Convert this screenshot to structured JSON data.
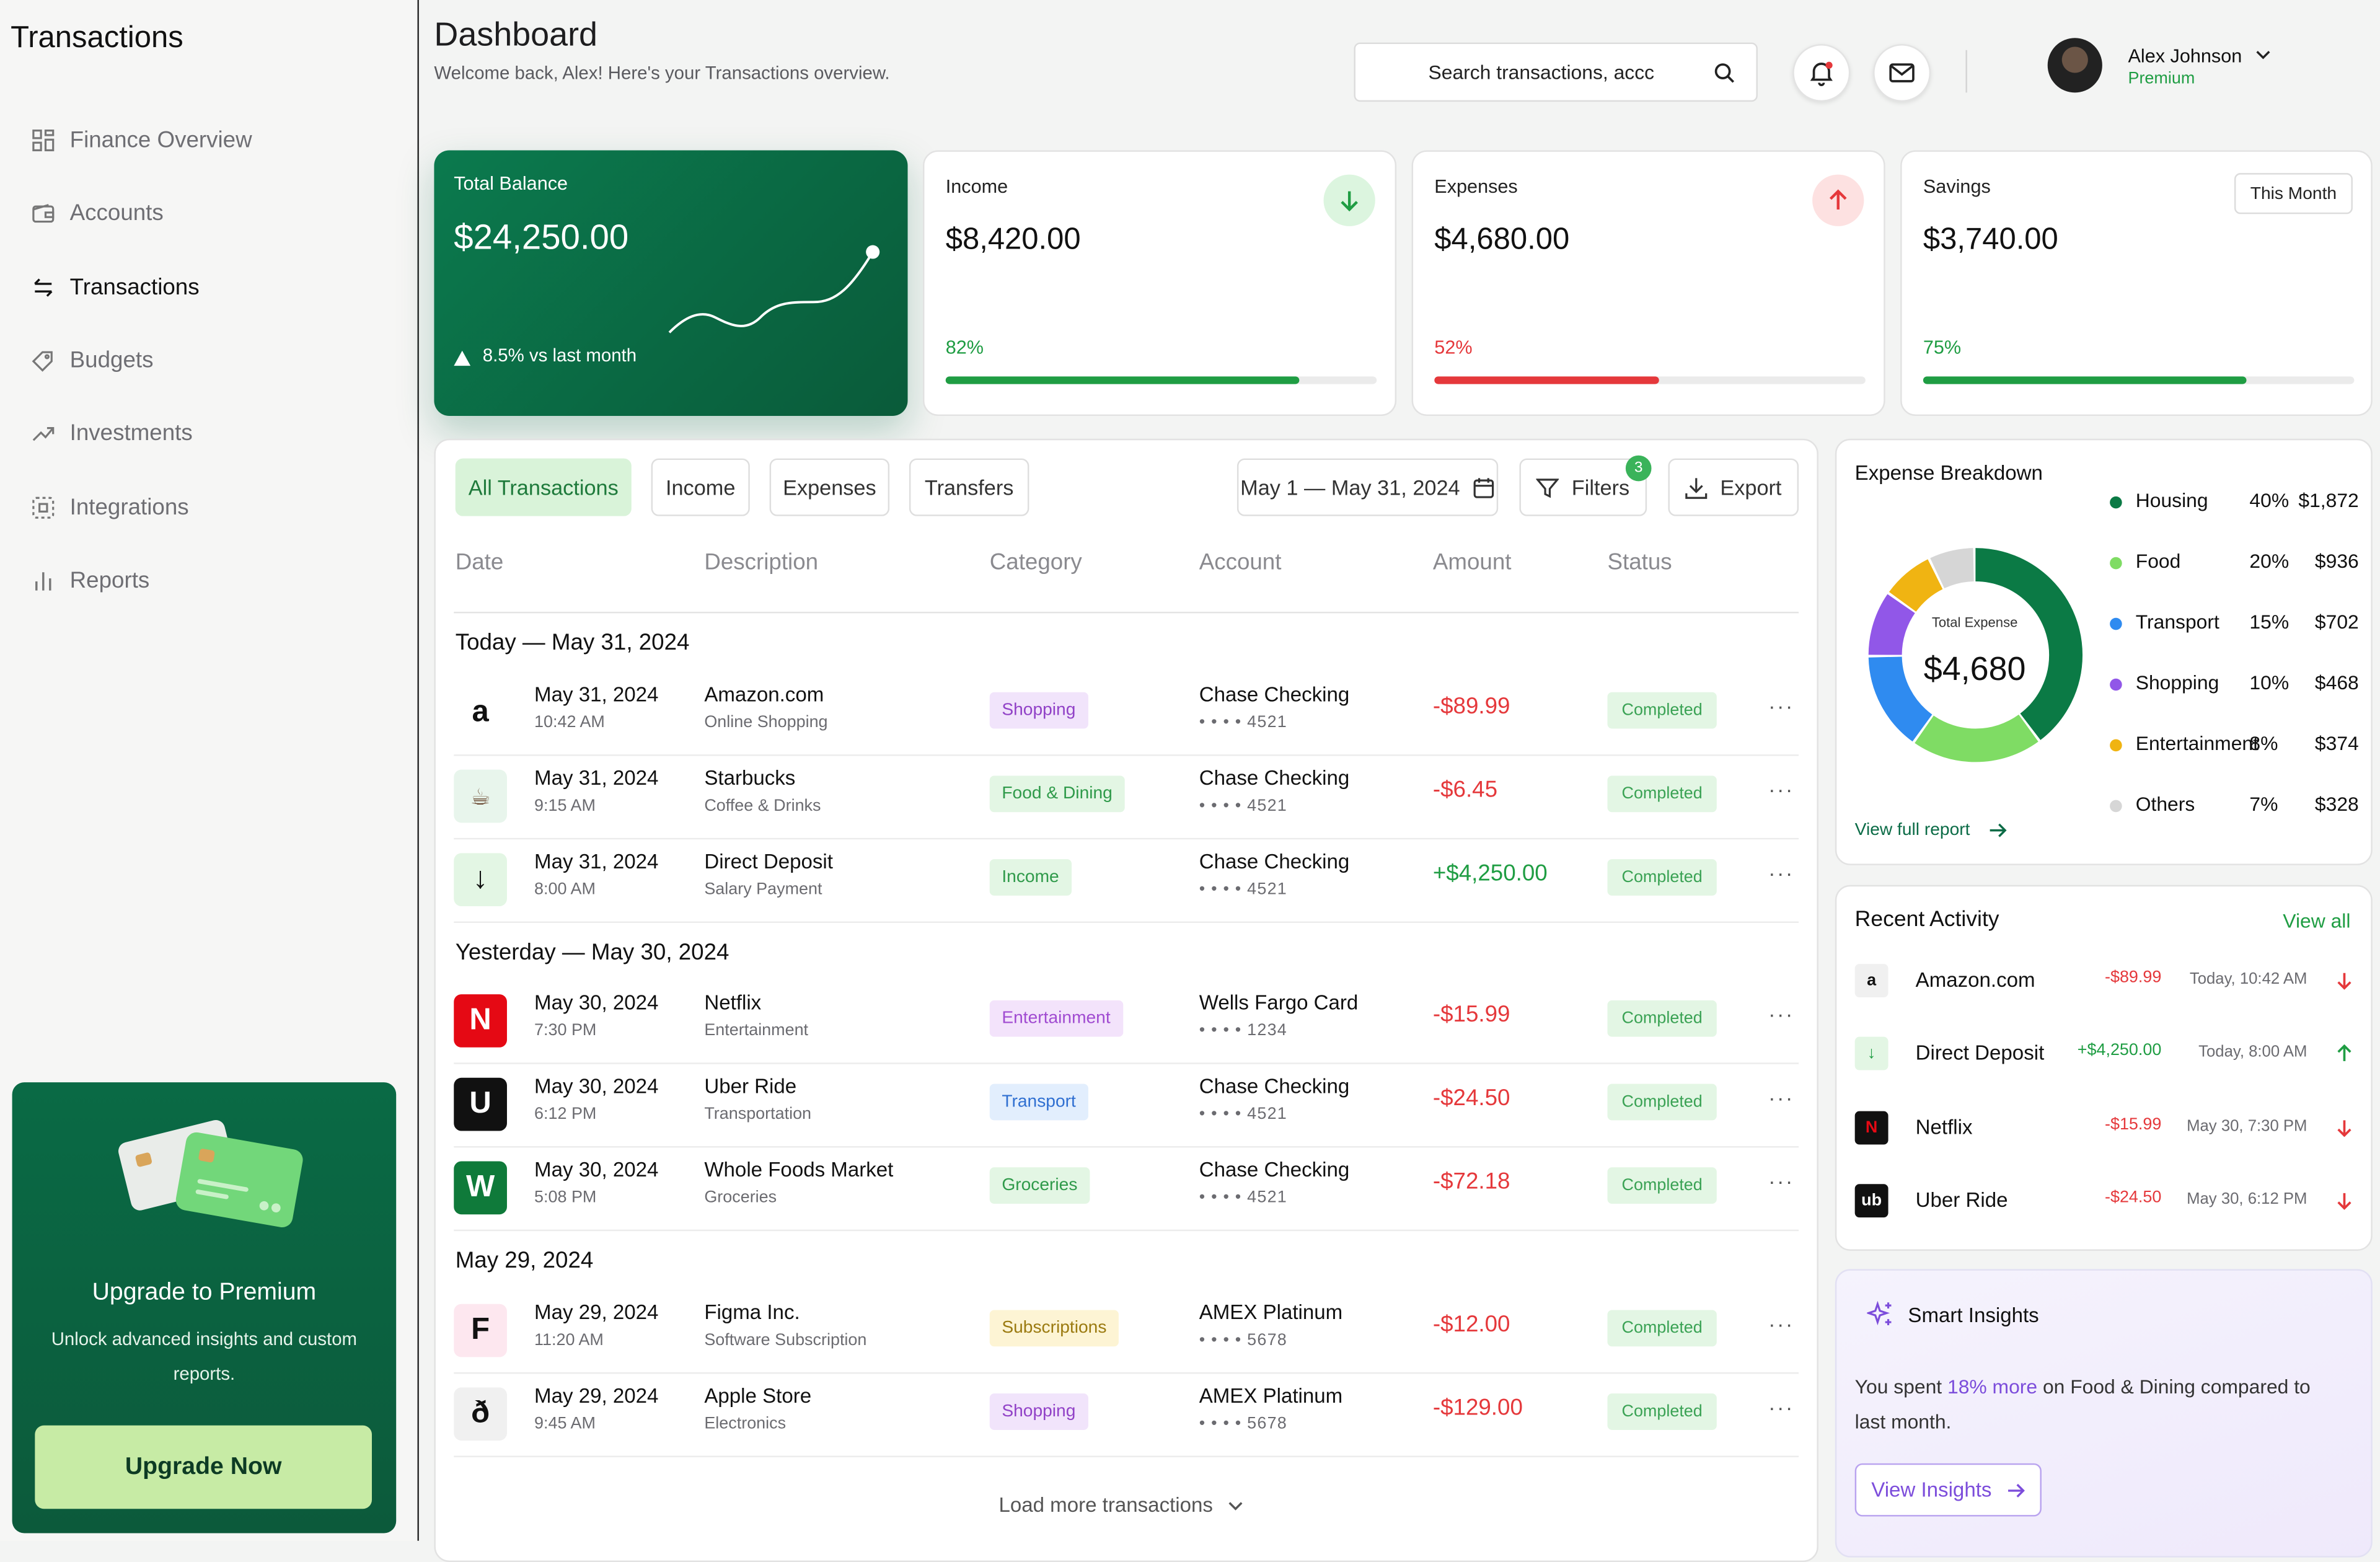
{
  "sidebar": {
    "brand": "Transactions",
    "items": [
      {
        "label": "Finance Overview",
        "icon": "grid-icon"
      },
      {
        "label": "Accounts",
        "icon": "wallet-icon"
      },
      {
        "label": "Transactions",
        "icon": "transfer-icon"
      },
      {
        "label": "Budgets",
        "icon": "tag-icon"
      },
      {
        "label": "Investments",
        "icon": "trend-up-icon"
      },
      {
        "label": "Integrations",
        "icon": "integration-icon"
      },
      {
        "label": "Reports",
        "icon": "bar-chart-icon"
      }
    ],
    "upgrade": {
      "title": "Upgrade to Premium",
      "text": "Unlock advanced insights and custom reports.",
      "button": "Upgrade Now"
    }
  },
  "header": {
    "title": "Dashboard",
    "subtitle": "Welcome back, Alex! Here's your Transactions overview.",
    "search_value": "Search transactions, accc",
    "user_name": "Alex Johnson",
    "user_plan": "Premium"
  },
  "stats": {
    "balance": {
      "label": "Total Balance",
      "value": "$24,250.00",
      "change": "8.5% vs last month"
    },
    "income": {
      "label": "Income",
      "value": "$8,420.00",
      "pct": "82%",
      "progress": 0.82
    },
    "expenses": {
      "label": "Expenses",
      "value": "$4,680.00",
      "pct": "52%",
      "progress": 0.52
    },
    "savings": {
      "label": "Savings",
      "value": "$3,740.00",
      "pct": "75%",
      "progress": 0.75,
      "period": "This Month"
    }
  },
  "colors": {
    "accent": "#0b6b46",
    "positive": "#1f9d43",
    "negative": "#e5383b",
    "purple": "#7c4ddb"
  },
  "filters": {
    "tabs": [
      "All Transactions",
      "Income",
      "Expenses",
      "Transfers"
    ],
    "date_range": "May 1 — May 31, 2024",
    "filters_label": "Filters",
    "filters_count": "3",
    "export_label": "Export"
  },
  "table": {
    "columns": [
      "Date",
      "Description",
      "Category",
      "Account",
      "Amount",
      "Status"
    ],
    "groups": [
      "Today — May 31, 2024",
      "Yesterday — May 30, 2024",
      "May 29, 2024"
    ],
    "rows": [
      {
        "icon": "a",
        "date": "May 31, 2024",
        "time": "10:42 AM",
        "desc": "Amazon.com",
        "sub": "Online Shopping",
        "cat": "Shopping",
        "acc": "Chase Checking",
        "mask": "• • • • 4521",
        "amt": "-$89.99",
        "status": "Completed"
      },
      {
        "icon": "☕",
        "date": "May 31, 2024",
        "time": "9:15 AM",
        "desc": "Starbucks",
        "sub": "Coffee & Drinks",
        "cat": "Food & Dining",
        "acc": "Chase Checking",
        "mask": "• • • • 4521",
        "amt": "-$6.45",
        "status": "Completed"
      },
      {
        "icon": "↓",
        "date": "May 31, 2024",
        "time": "8:00 AM",
        "desc": "Direct Deposit",
        "sub": "Salary Payment",
        "cat": "Income",
        "acc": "Chase Checking",
        "mask": "• • • • 4521",
        "amt": "+$4,250.00",
        "status": "Completed"
      },
      {
        "icon": "N",
        "date": "May 30, 2024",
        "time": "7:30 PM",
        "desc": "Netflix",
        "sub": "Entertainment",
        "cat": "Entertainment",
        "acc": "Wells Fargo Card",
        "mask": "• • • • 1234",
        "amt": "-$15.99",
        "status": "Completed"
      },
      {
        "icon": "U",
        "date": "May 30, 2024",
        "time": "6:12 PM",
        "desc": "Uber Ride",
        "sub": "Transportation",
        "cat": "Transport",
        "acc": "Chase Checking",
        "mask": "• • • • 4521",
        "amt": "-$24.50",
        "status": "Completed"
      },
      {
        "icon": "W",
        "date": "May 30, 2024",
        "time": "5:08 PM",
        "desc": "Whole Foods Market",
        "sub": "Groceries",
        "cat": "Groceries",
        "acc": "Chase Checking",
        "mask": "• • • • 4521",
        "amt": "-$72.18",
        "status": "Completed"
      },
      {
        "icon": "F",
        "date": "May 29, 2024",
        "time": "11:20 AM",
        "desc": "Figma Inc.",
        "sub": "Software Subscription",
        "cat": "Subscriptions",
        "acc": "AMEX Platinum",
        "mask": "• • • • 5678",
        "amt": "-$12.00",
        "status": "Completed"
      },
      {
        "icon": "ð",
        "date": "May 29, 2024",
        "time": "9:45 AM",
        "desc": "Apple Store",
        "sub": "Electronics",
        "cat": "Shopping",
        "acc": "AMEX Platinum",
        "mask": "• • • • 5678",
        "amt": "-$129.00",
        "status": "Completed"
      }
    ],
    "more_label": "···",
    "load_more": "Load more transactions"
  },
  "breakdown": {
    "title": "Expense Breakdown",
    "center_label": "Total Expense",
    "center_value": "$4,680",
    "link": "View full report",
    "items": [
      {
        "name": "Housing",
        "pct": "40%",
        "value": "$1,872",
        "share": 40,
        "color": "#0b7a45"
      },
      {
        "name": "Food",
        "pct": "20%",
        "value": "$936",
        "share": 20,
        "color": "#7fdc64"
      },
      {
        "name": "Transport",
        "pct": "15%",
        "value": "$702",
        "share": 15,
        "color": "#2f8bf0"
      },
      {
        "name": "Shopping",
        "pct": "10%",
        "value": "$468",
        "share": 10,
        "color": "#9157e8"
      },
      {
        "name": "Entertainment",
        "pct": "8%",
        "value": "$374",
        "share": 8,
        "color": "#f0b412"
      },
      {
        "name": "Others",
        "pct": "7%",
        "value": "$328",
        "share": 7,
        "color": "#d6d6d6"
      }
    ]
  },
  "activity": {
    "title": "Recent Activity",
    "view_all": "View all",
    "items": [
      {
        "icon": "a",
        "name": "Amazon.com",
        "amt": "-$89.99",
        "time": "Today, 10:42 AM",
        "dir": "down"
      },
      {
        "icon": "↓",
        "name": "Direct Deposit",
        "amt": "+$4,250.00",
        "time": "Today, 8:00 AM",
        "dir": "up"
      },
      {
        "icon": "N",
        "name": "Netflix",
        "amt": "-$15.99",
        "time": "May 30, 7:30 PM",
        "dir": "down"
      },
      {
        "icon": "ub",
        "name": "Uber Ride",
        "amt": "-$24.50",
        "time": "May 30, 6:12 PM",
        "dir": "down"
      }
    ]
  },
  "insights": {
    "title": "Smart Insights",
    "text_before": "You spent ",
    "highlight": "18% more",
    "text_after": " on Food & Dining compared to last month.",
    "button": "View Insights"
  }
}
